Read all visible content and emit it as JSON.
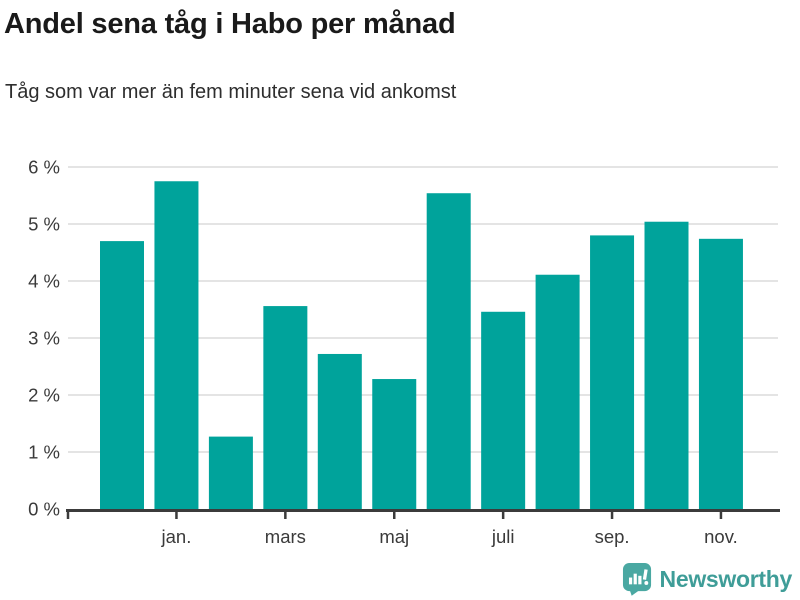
{
  "header": {
    "title": "Andel sena tåg i Habo per månad",
    "subtitle": "Tåg som var mer än fem minuter sena vid ankomst"
  },
  "chart_data": {
    "type": "bar",
    "title": "Andel sena tåg i Habo per månad",
    "subtitle": "Tåg som var mer än fem minuter sena vid ankomst",
    "categories": [
      "",
      "jan.",
      "",
      "mars",
      "",
      "maj",
      "",
      "juli",
      "",
      "sep.",
      "",
      "nov."
    ],
    "values": [
      4.7,
      5.75,
      1.27,
      3.56,
      2.72,
      2.28,
      5.54,
      3.46,
      4.11,
      4.8,
      5.04,
      4.74
    ],
    "unit": "%",
    "x_tick_labels": [
      "jan.",
      "mars",
      "maj",
      "juli",
      "sep.",
      "nov."
    ],
    "x_tick_indices": [
      1,
      3,
      5,
      7,
      9,
      11
    ],
    "y_tick_labels": [
      "0 %",
      "1 %",
      "2 %",
      "3 %",
      "4 %",
      "5 %",
      "6 %"
    ],
    "ylim": [
      0,
      6
    ],
    "xlabel": "",
    "ylabel": "",
    "grid": true,
    "legend": false,
    "bar_color": "#00a39b",
    "grid_color": "#e4e4e4",
    "axis_color": "#3b3b3b",
    "tick_label_color": "#3a3a3a"
  },
  "footer": {
    "brand": "Newsworthy",
    "brand_color": "#3f9d98",
    "brand_icon": "bar-chart-speech-bubble-icon",
    "brand_icon_color": "#4aa8a2"
  }
}
